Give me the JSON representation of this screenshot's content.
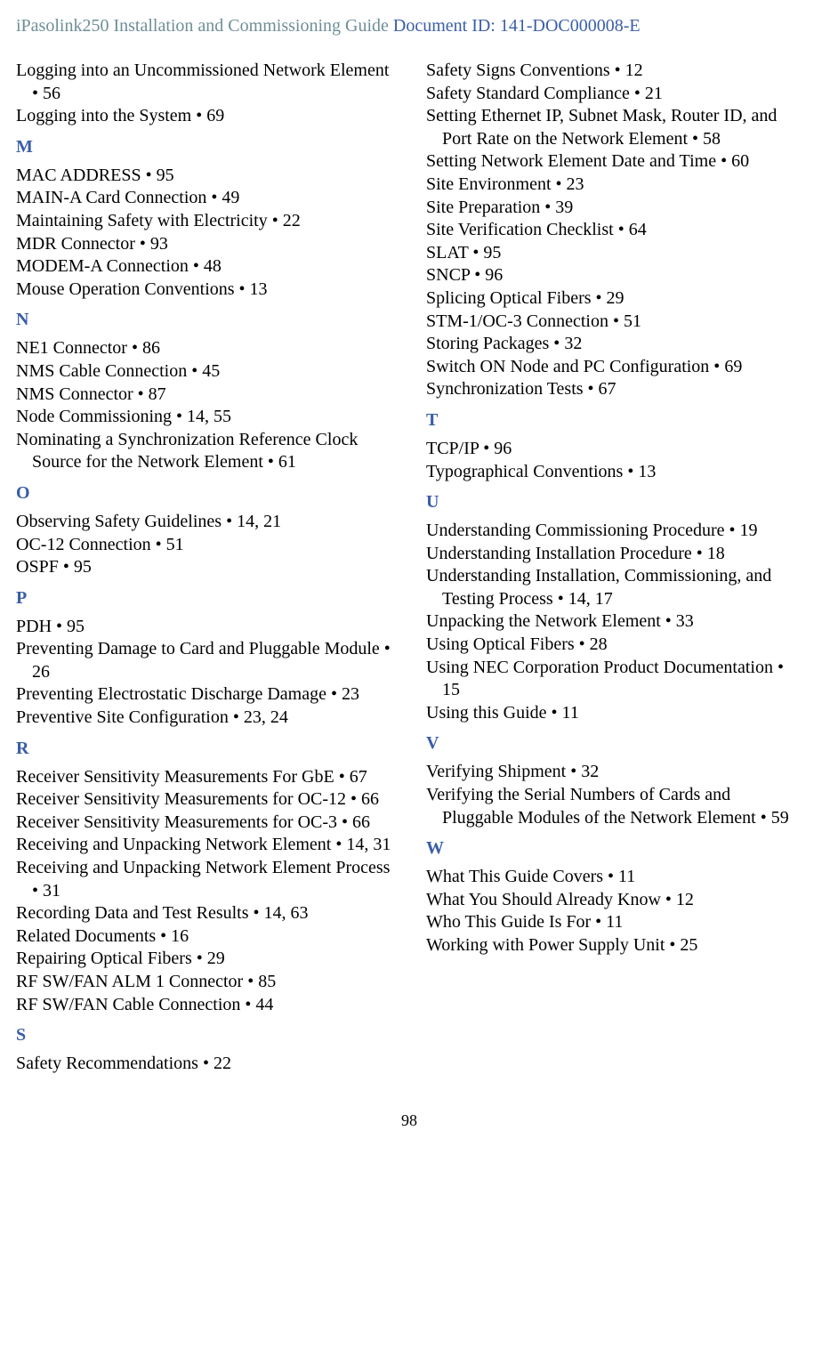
{
  "header": {
    "title": "iPasolink250 Installation and Commissioning Guide",
    "separator": " ",
    "docid": "Document ID: 141-DOC000008-E"
  },
  "colors": {
    "title_color": "#6e8e98",
    "docid_color": "#3a5ea8",
    "letter_color": "#3a5ea8",
    "text_color": "#000000",
    "background": "#ffffff"
  },
  "typography": {
    "font_family": "Garamond, Georgia, serif",
    "header_fontsize_pt": 15,
    "entry_fontsize_pt": 15,
    "line_height": 1.28
  },
  "page_number": "98",
  "columns": [
    {
      "blocks": [
        {
          "type": "entries",
          "items": [
            "Logging into an Uncommissioned Network Element • 56",
            "Logging into the System • 69"
          ]
        },
        {
          "type": "letter",
          "text": "M"
        },
        {
          "type": "entries",
          "items": [
            "MAC ADDRESS • 95",
            "MAIN-A Card Connection • 49",
            "Maintaining Safety with Electricity • 22",
            "MDR Connector • 93",
            "MODEM-A Connection • 48",
            "Mouse Operation Conventions • 13"
          ]
        },
        {
          "type": "letter",
          "text": "N"
        },
        {
          "type": "entries",
          "items": [
            "NE1 Connector • 86",
            "NMS Cable Connection • 45",
            "NMS Connector • 87",
            "Node Commissioning • 14, 55",
            "Nominating a Synchronization Reference Clock Source for the Network Element • 61"
          ]
        },
        {
          "type": "letter",
          "text": "O"
        },
        {
          "type": "entries",
          "items": [
            "Observing Safety Guidelines • 14, 21",
            "OC-12 Connection • 51",
            "OSPF • 95"
          ]
        },
        {
          "type": "letter",
          "text": "P"
        },
        {
          "type": "entries",
          "items": [
            "PDH • 95",
            "Preventing Damage to Card and Pluggable Module • 26",
            "Preventing Electrostatic Discharge Damage • 23",
            "Preventive Site Configuration • 23, 24"
          ]
        },
        {
          "type": "letter",
          "text": "R"
        },
        {
          "type": "entries",
          "items": [
            "Receiver Sensitivity Measurements For GbE • 67",
            "Receiver Sensitivity Measurements for OC-12 • 66",
            "Receiver Sensitivity Measurements for OC-3 • 66",
            "Receiving and Unpacking Network Element • 14, 31",
            "Receiving and Unpacking Network Element Process • 31",
            "Recording Data and Test Results • 14, 63",
            "Related Documents • 16",
            "Repairing Optical Fibers • 29",
            "RF SW/FAN ALM 1 Connector • 85",
            "RF SW/FAN Cable Connection • 44"
          ]
        },
        {
          "type": "letter",
          "text": "S"
        },
        {
          "type": "entries",
          "items": [
            "Safety Recommendations • 22"
          ]
        }
      ]
    },
    {
      "blocks": [
        {
          "type": "entries",
          "items": [
            "Safety Signs Conventions • 12",
            "Safety Standard Compliance • 21",
            "Setting Ethernet IP, Subnet Mask, Router ID, and Port Rate on the Network Element • 58",
            "Setting Network Element Date and Time • 60",
            "Site Environment • 23",
            "Site Preparation • 39",
            "Site Verification Checklist • 64",
            "SLAT • 95",
            "SNCP • 96",
            "Splicing Optical Fibers • 29",
            "STM-1/OC-3 Connection • 51",
            "Storing Packages • 32",
            "Switch ON Node and PC Configuration • 69",
            "Synchronization Tests • 67"
          ]
        },
        {
          "type": "letter",
          "text": "T"
        },
        {
          "type": "entries",
          "items": [
            "TCP/IP • 96",
            "Typographical Conventions • 13"
          ]
        },
        {
          "type": "letter",
          "text": "U"
        },
        {
          "type": "entries",
          "items": [
            "Understanding Commissioning Procedure • 19",
            "Understanding Installation Procedure • 18",
            "Understanding Installation, Commissioning, and Testing Process • 14, 17",
            "Unpacking the Network Element • 33",
            "Using Optical Fibers • 28",
            "Using NEC Corporation Product Documentation • 15",
            "Using this Guide • 11"
          ]
        },
        {
          "type": "letter",
          "text": "V"
        },
        {
          "type": "entries",
          "items": [
            "Verifying Shipment • 32",
            "Verifying the Serial Numbers of Cards and Pluggable Modules of the Network Element • 59"
          ]
        },
        {
          "type": "letter",
          "text": "W"
        },
        {
          "type": "entries",
          "items": [
            "What This Guide Covers • 11",
            "What You Should Already Know • 12",
            "Who This Guide Is For • 11",
            "Working with Power Supply Unit • 25"
          ]
        }
      ]
    }
  ]
}
